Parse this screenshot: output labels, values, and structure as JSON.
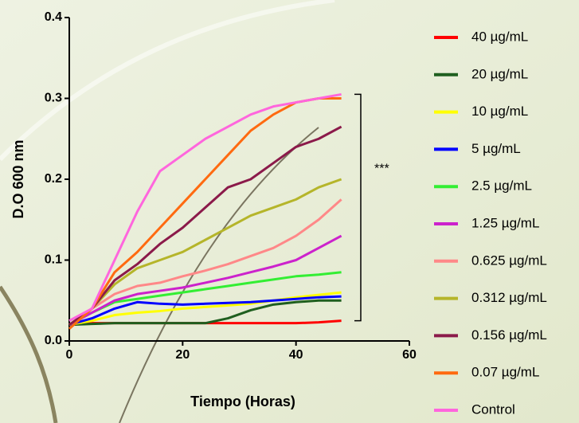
{
  "chart_data": {
    "type": "line",
    "x_label": "Tiempo (Horas)",
    "y_label": "D.O 600 nm",
    "annotation": "***",
    "x": [
      0,
      4,
      8,
      12,
      16,
      20,
      24,
      28,
      32,
      36,
      40,
      44,
      48
    ],
    "xlim": [
      0,
      60
    ],
    "xticks": [
      0,
      20,
      40,
      60
    ],
    "ylim": [
      0,
      0.4
    ],
    "yticks": [
      {
        "value": 0,
        "label": "0.0"
      },
      0.1,
      0.2,
      0.3,
      0.4
    ],
    "series": [
      {
        "name": "40 µg/mL",
        "color": "#ff0000",
        "values": [
          0.02,
          0.022,
          0.022,
          0.022,
          0.022,
          0.022,
          0.022,
          0.022,
          0.022,
          0.022,
          0.022,
          0.023,
          0.025
        ]
      },
      {
        "name": "20 µg/mL",
        "color": "#1f5f1f",
        "values": [
          0.02,
          0.021,
          0.022,
          0.022,
          0.022,
          0.022,
          0.022,
          0.028,
          0.038,
          0.045,
          0.048,
          0.05,
          0.05
        ]
      },
      {
        "name": "10 µg/mL",
        "color": "#ffff00",
        "values": [
          0.02,
          0.025,
          0.032,
          0.035,
          0.037,
          0.04,
          0.042,
          0.044,
          0.046,
          0.05,
          0.054,
          0.057,
          0.06
        ]
      },
      {
        "name": "5 µg/mL",
        "color": "#0000ff",
        "values": [
          0.02,
          0.028,
          0.04,
          0.048,
          0.046,
          0.045,
          0.046,
          0.047,
          0.048,
          0.05,
          0.052,
          0.054,
          0.055
        ]
      },
      {
        "name": "2.5 µg/mL",
        "color": "#33ee33",
        "values": [
          0.02,
          0.035,
          0.048,
          0.052,
          0.056,
          0.06,
          0.064,
          0.068,
          0.072,
          0.076,
          0.08,
          0.082,
          0.085
        ]
      },
      {
        "name": "1.25 µg/mL",
        "color": "#cc22cc",
        "values": [
          0.02,
          0.035,
          0.05,
          0.058,
          0.062,
          0.066,
          0.072,
          0.078,
          0.085,
          0.092,
          0.1,
          0.115,
          0.13
        ]
      },
      {
        "name": "0.625 µg/mL",
        "color": "#ff8888",
        "values": [
          0.02,
          0.04,
          0.058,
          0.068,
          0.072,
          0.08,
          0.087,
          0.095,
          0.105,
          0.115,
          0.13,
          0.15,
          0.175
        ]
      },
      {
        "name": "0.312 µg/mL",
        "color": "#b5b52a",
        "values": [
          0.02,
          0.04,
          0.07,
          0.09,
          0.1,
          0.11,
          0.125,
          0.14,
          0.155,
          0.165,
          0.175,
          0.19,
          0.2
        ]
      },
      {
        "name": "0.156 µg/mL",
        "color": "#8b1a4a",
        "values": [
          0.02,
          0.04,
          0.075,
          0.095,
          0.12,
          0.14,
          0.165,
          0.19,
          0.2,
          0.22,
          0.24,
          0.25,
          0.265
        ]
      },
      {
        "name": "0.07 µg/mL",
        "color": "#ff6a10",
        "values": [
          0.015,
          0.04,
          0.085,
          0.11,
          0.14,
          0.17,
          0.2,
          0.23,
          0.26,
          0.28,
          0.295,
          0.3,
          0.3
        ]
      },
      {
        "name": "Control",
        "color": "#ff66dd",
        "values": [
          0.025,
          0.04,
          0.1,
          0.16,
          0.21,
          0.23,
          0.25,
          0.265,
          0.28,
          0.29,
          0.295,
          0.3,
          0.305
        ]
      }
    ]
  }
}
